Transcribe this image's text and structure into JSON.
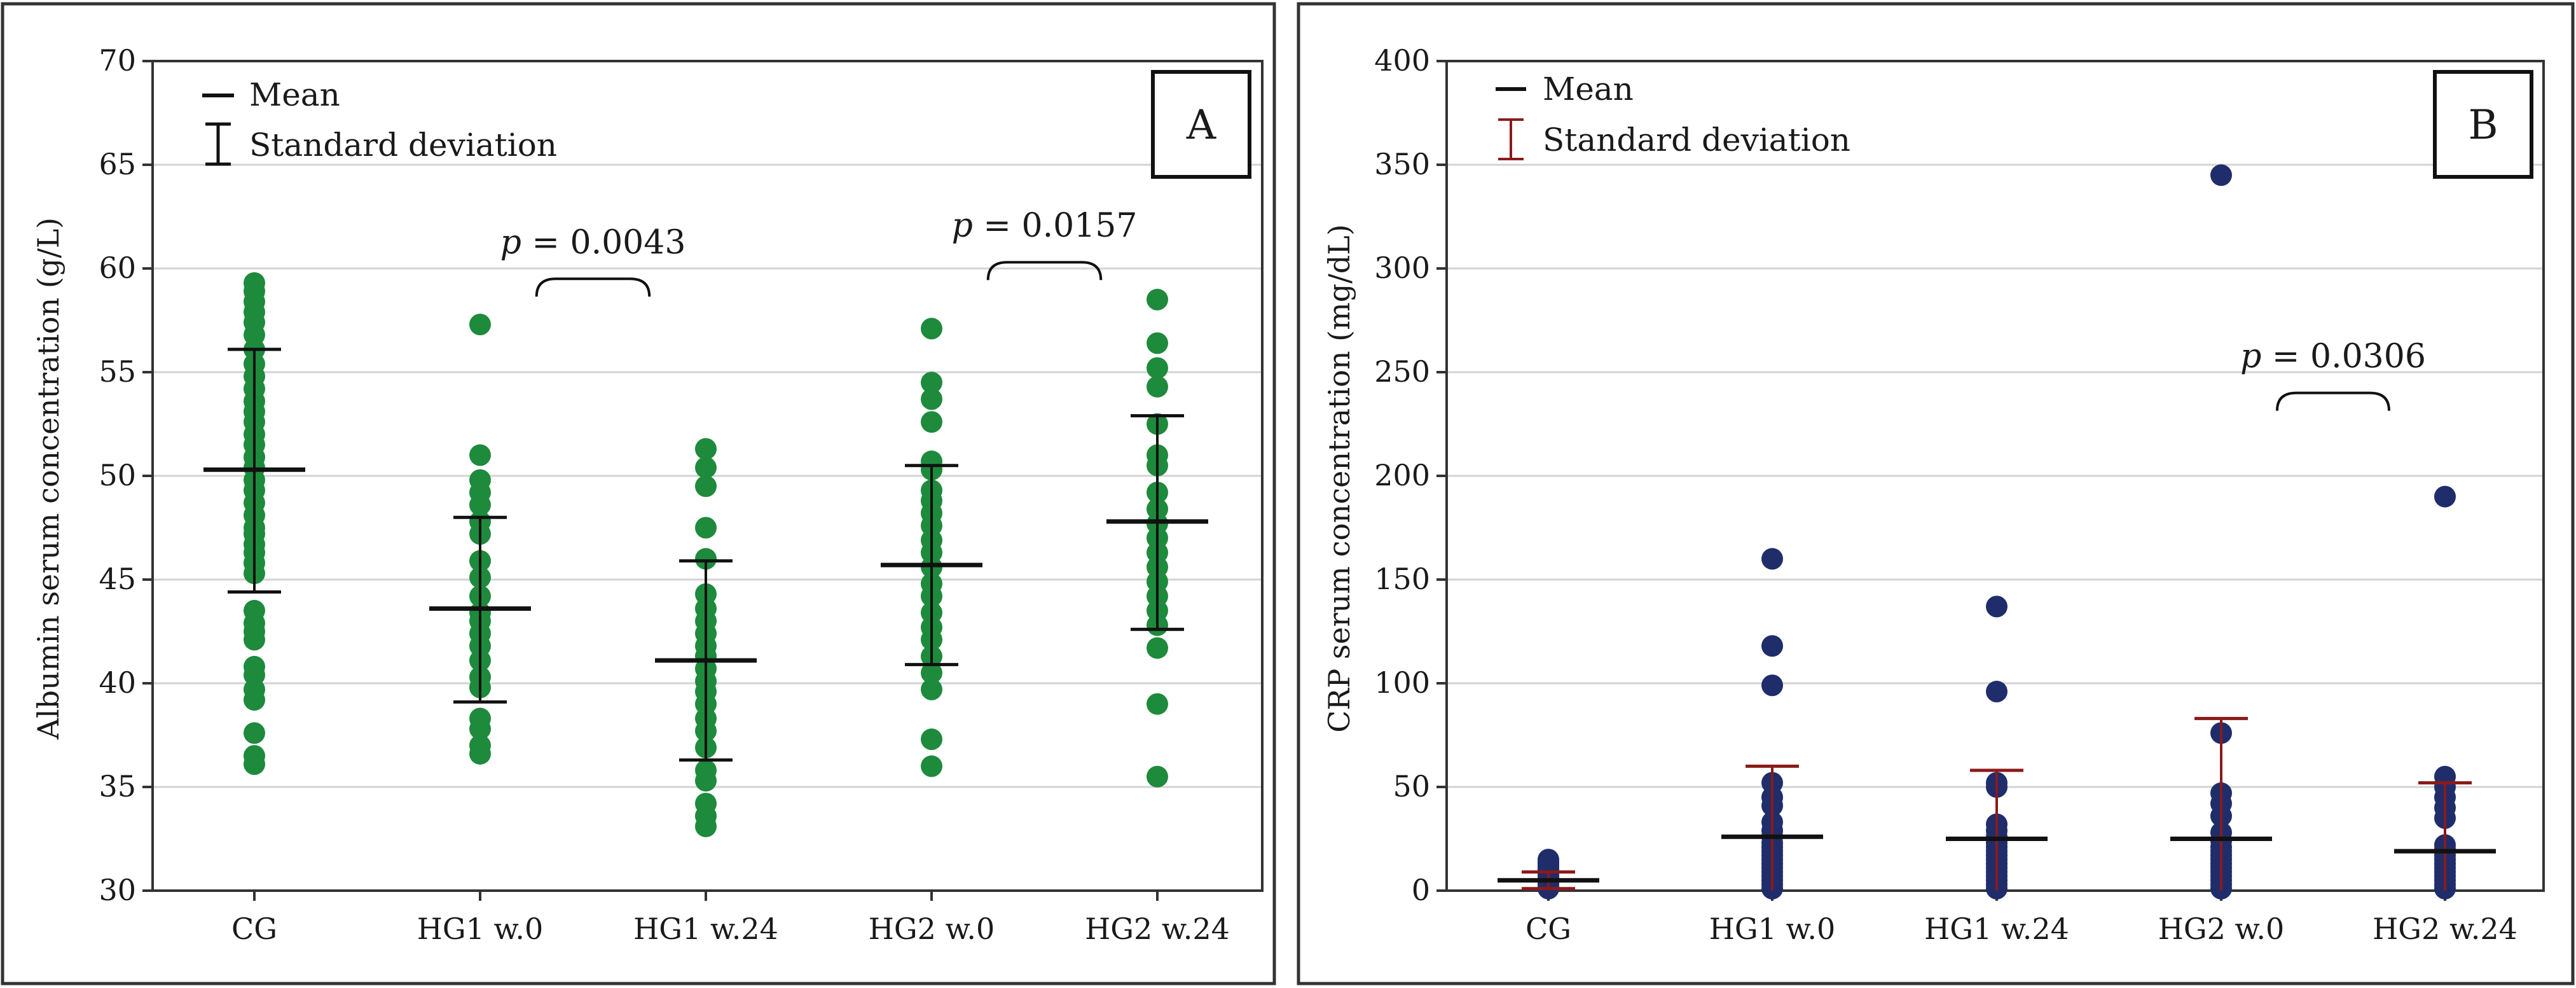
{
  "colors": {
    "panel_a_dot": "#1e8a3c",
    "panel_b_dot": "#1f2d6b",
    "panel_b_sd": "#8b1a1a",
    "mean_line": "#111111",
    "grid": "#d3d3d3",
    "frame": "#333333"
  },
  "chart_data": [
    {
      "type": "scatter",
      "panel": "A",
      "ylabel": "Albumin serum concentration (g/L)",
      "ylim": [
        30,
        70
      ],
      "yticks": [
        30,
        35,
        40,
        45,
        50,
        55,
        60,
        65,
        70
      ],
      "grid": true,
      "categories": [
        "CG",
        "HG1 w.0",
        "HG1 w.24",
        "HG2 w.0",
        "HG2 w.24"
      ],
      "legend": {
        "mean": "Mean",
        "sd": "Standard deviation",
        "position": "top-left"
      },
      "annotations": [
        {
          "text_prefix": "p",
          "text_value": " = 0.0043",
          "from": 1,
          "to": 2,
          "y": 59.5
        },
        {
          "text_prefix": "p",
          "text_value": " = 0.0157",
          "from": 3,
          "to": 4,
          "y": 60.3
        }
      ],
      "series": [
        {
          "category": "CG",
          "mean": 50.3,
          "sd_low": 44.4,
          "sd_high": 56.1,
          "points": [
            36.1,
            36.5,
            37.6,
            39.2,
            39.7,
            40.4,
            40.8,
            42.1,
            42.5,
            42.9,
            43.5,
            45.3,
            45.8,
            46.3,
            46.7,
            47.2,
            47.5,
            48.1,
            48.7,
            49.3,
            49.8,
            50.4,
            50.9,
            51.5,
            52.0,
            52.6,
            53.1,
            53.6,
            54.2,
            54.8,
            55.4,
            56.1,
            56.8,
            57.4,
            57.9,
            58.4,
            58.9,
            59.3
          ]
        },
        {
          "category": "HG1 w.0",
          "mean": 43.6,
          "sd_low": 39.1,
          "sd_high": 48.0,
          "points": [
            36.6,
            37.0,
            37.8,
            38.3,
            39.8,
            40.3,
            41.1,
            41.8,
            42.4,
            43.0,
            43.4,
            44.2,
            45.1,
            45.9,
            47.2,
            47.8,
            48.6,
            49.2,
            49.8,
            51.0,
            57.3
          ]
        },
        {
          "category": "HG1 w.24",
          "mean": 41.1,
          "sd_low": 36.3,
          "sd_high": 45.9,
          "points": [
            33.1,
            33.6,
            34.2,
            35.3,
            35.8,
            36.9,
            37.7,
            38.3,
            39.0,
            39.6,
            40.1,
            40.7,
            41.3,
            41.8,
            42.4,
            43.0,
            43.6,
            44.3,
            46.0,
            47.5,
            49.5,
            50.4,
            51.3
          ]
        },
        {
          "category": "HG2 w.0",
          "mean": 45.7,
          "sd_low": 40.9,
          "sd_high": 50.5,
          "points": [
            36.0,
            37.3,
            39.7,
            40.5,
            41.3,
            42.1,
            42.7,
            43.4,
            44.2,
            44.8,
            45.6,
            46.3,
            46.9,
            47.6,
            48.2,
            48.8,
            49.3,
            50.3,
            50.7,
            52.6,
            53.7,
            54.5,
            57.1
          ]
        },
        {
          "category": "HG2 w.24",
          "mean": 47.8,
          "sd_low": 42.6,
          "sd_high": 52.9,
          "points": [
            35.5,
            39.0,
            41.7,
            42.8,
            43.5,
            44.2,
            44.9,
            45.6,
            46.3,
            47.0,
            47.7,
            48.4,
            49.2,
            50.5,
            51.0,
            52.5,
            54.3,
            55.2,
            56.4,
            58.5
          ]
        }
      ]
    },
    {
      "type": "scatter",
      "panel": "B",
      "ylabel": "CRP serum concentration (mg/dL)",
      "ylim": [
        0,
        400
      ],
      "yticks": [
        0,
        50,
        100,
        150,
        200,
        250,
        300,
        350,
        400
      ],
      "grid": true,
      "categories": [
        "CG",
        "HG1 w.0",
        "HG1 w.24",
        "HG2 w.0",
        "HG2 w.24"
      ],
      "legend": {
        "mean": "Mean",
        "sd": "Standard deviation",
        "position": "top-left"
      },
      "annotations": [
        {
          "text_prefix": "p",
          "text_value": " = 0.0306",
          "from": 3,
          "to": 4,
          "y": 240
        }
      ],
      "series": [
        {
          "category": "CG",
          "mean": 5,
          "sd_low": 1,
          "sd_high": 9,
          "points": [
            1,
            2,
            3,
            4,
            5,
            6,
            7,
            8,
            9,
            10,
            11,
            12,
            13,
            14,
            15
          ]
        },
        {
          "category": "HG1 w.0",
          "mean": 26,
          "sd_low": 0,
          "sd_high": 60,
          "points": [
            1,
            3,
            5,
            7,
            9,
            11,
            13,
            15,
            17,
            19,
            21,
            23,
            26,
            29,
            33,
            41,
            45,
            52,
            99,
            118,
            160
          ]
        },
        {
          "category": "HG1 w.24",
          "mean": 25,
          "sd_low": 0,
          "sd_high": 58,
          "points": [
            1,
            3,
            5,
            7,
            9,
            11,
            13,
            15,
            17,
            19,
            21,
            23,
            26,
            29,
            32,
            50,
            52,
            96,
            137
          ]
        },
        {
          "category": "HG2 w.0",
          "mean": 25,
          "sd_low": 0,
          "sd_high": 83,
          "points": [
            1,
            3,
            5,
            7,
            9,
            11,
            13,
            15,
            17,
            19,
            21,
            24,
            28,
            36,
            42,
            47,
            76,
            345
          ]
        },
        {
          "category": "HG2 w.24",
          "mean": 19,
          "sd_low": 0,
          "sd_high": 52,
          "points": [
            1,
            3,
            5,
            7,
            9,
            11,
            13,
            15,
            17,
            20,
            22,
            35,
            40,
            45,
            50,
            55,
            190
          ]
        }
      ]
    }
  ]
}
